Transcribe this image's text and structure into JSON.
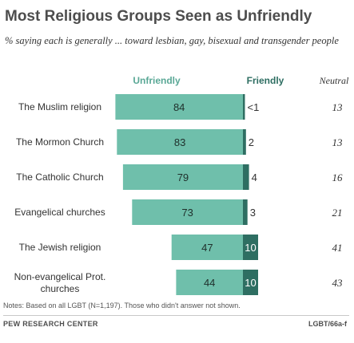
{
  "title": "Most Religious Groups Seen as Unfriendly",
  "subtitle": "% saying each is generally ... toward lesbian, gay, bisexual and transgender people",
  "notes": "Notes: Based on all LGBT (N=1,197). Those who didn't answer not shown.",
  "source": "PEW RESEARCH CENTER",
  "code": "LGBT/66a-f",
  "colors": {
    "unfriendly": "#6fbfab",
    "friendly": "#2e6e62",
    "unfriendly_header": "#5aa896",
    "friendly_header": "#2e6e62"
  },
  "chart_data": {
    "type": "bar",
    "orientation": "horizontal",
    "stacked": "diverging",
    "column_headers": {
      "unfriendly": "Unfriendly",
      "friendly": "Friendly",
      "neutral": "Neutral"
    },
    "categories": [
      "The Muslim religion",
      "The Mormon Church",
      "The Catholic Church",
      "Evangelical churches",
      "The Jewish religion",
      "Non-evangelical Prot. churches"
    ],
    "series": [
      {
        "name": "Unfriendly",
        "values": [
          84,
          83,
          79,
          73,
          47,
          44
        ],
        "labels": [
          "84",
          "83",
          "79",
          "73",
          "47",
          "44"
        ]
      },
      {
        "name": "Friendly",
        "values": [
          0.5,
          2,
          4,
          3,
          10,
          10
        ],
        "labels": [
          "<1",
          "2",
          "4",
          "3",
          "10",
          "10"
        ]
      }
    ],
    "neutral": {
      "name": "Neutral",
      "values": [
        13,
        13,
        16,
        21,
        41,
        43
      ],
      "labels": [
        "13",
        "13",
        "16",
        "21",
        "41",
        "43"
      ]
    }
  }
}
